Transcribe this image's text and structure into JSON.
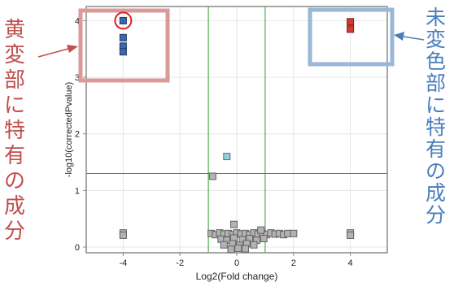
{
  "chart_data": {
    "type": "scatter",
    "title": "",
    "xlabel": "Log2(Fold change)",
    "ylabel": "-log10(correctedPvalue)",
    "xlim": [
      -5.3,
      5.3
    ],
    "ylim": [
      -0.1,
      4.25
    ],
    "xticks": [
      -4,
      -2,
      0,
      2,
      4
    ],
    "yticks": [
      0,
      1,
      2,
      3,
      4
    ],
    "xtick_labels": [
      "-4",
      "-2",
      "0",
      "2",
      "4"
    ],
    "ytick_labels": [
      "0",
      "1",
      "2",
      "3",
      "4"
    ],
    "grid": true,
    "thresholds": {
      "x": [
        -1,
        1
      ],
      "y": 1.3
    },
    "series": [
      {
        "color": "#3a67b0",
        "points": [
          [
            -4,
            4.0
          ],
          [
            -4,
            3.7
          ],
          [
            -4,
            3.55
          ],
          [
            -4,
            3.45
          ]
        ]
      },
      {
        "color": "#d43a33",
        "points": [
          [
            4,
            3.98
          ],
          [
            4,
            3.85
          ]
        ]
      },
      {
        "color": "#8ed0dc",
        "points": [
          [
            -0.35,
            1.6
          ]
        ]
      },
      {
        "color": "#b3b3b3",
        "points": [
          [
            -0.85,
            1.25
          ],
          [
            -4,
            0.25
          ],
          [
            -4,
            0.21
          ],
          [
            4,
            0.25
          ],
          [
            4,
            0.21
          ],
          [
            -0.9,
            0.24
          ],
          [
            -0.75,
            0.22
          ],
          [
            -0.6,
            0.25
          ],
          [
            -0.45,
            0.23
          ],
          [
            -0.3,
            0.24
          ],
          [
            -0.15,
            0.22
          ],
          [
            0,
            0.25
          ],
          [
            0.15,
            0.23
          ],
          [
            0.3,
            0.24
          ],
          [
            0.45,
            0.22
          ],
          [
            0.6,
            0.25
          ],
          [
            0.75,
            0.23
          ],
          [
            0.9,
            0.24
          ],
          [
            1.05,
            0.22
          ],
          [
            1.2,
            0.25
          ],
          [
            1.35,
            0.23
          ],
          [
            1.5,
            0.24
          ],
          [
            1.65,
            0.22
          ],
          [
            1.8,
            0.24
          ],
          [
            2.0,
            0.24
          ],
          [
            -0.55,
            0.14
          ],
          [
            -0.35,
            0.12
          ],
          [
            -0.1,
            0.16
          ],
          [
            0.2,
            0.13
          ],
          [
            0.45,
            0.15
          ],
          [
            0.7,
            0.12
          ],
          [
            0.95,
            0.15
          ],
          [
            -0.45,
            0.04
          ],
          [
            -0.15,
            0.06
          ],
          [
            0.1,
            0.03
          ],
          [
            0.35,
            0.06
          ],
          [
            0.6,
            0.04
          ],
          [
            -0.2,
            -0.04
          ],
          [
            0.05,
            -0.02
          ],
          [
            0.3,
            -0.03
          ],
          [
            -0.1,
            0.4
          ],
          [
            0.85,
            0.3
          ]
        ]
      }
    ],
    "annotations": [
      {
        "text": "黄変部に特有の成分",
        "color": "#c0504d",
        "highlight_box_color": "#d99a9a",
        "circle_color": "#e02020"
      },
      {
        "text": "未変色部に特有の成分",
        "color": "#4a7ebb",
        "highlight_box_color": "#9ab6d9"
      }
    ]
  },
  "styles": {
    "threshold_color": "#2ea02e",
    "grid_color": "#e6e6e6",
    "axis_color": "#888888",
    "text_color": "#222222"
  }
}
